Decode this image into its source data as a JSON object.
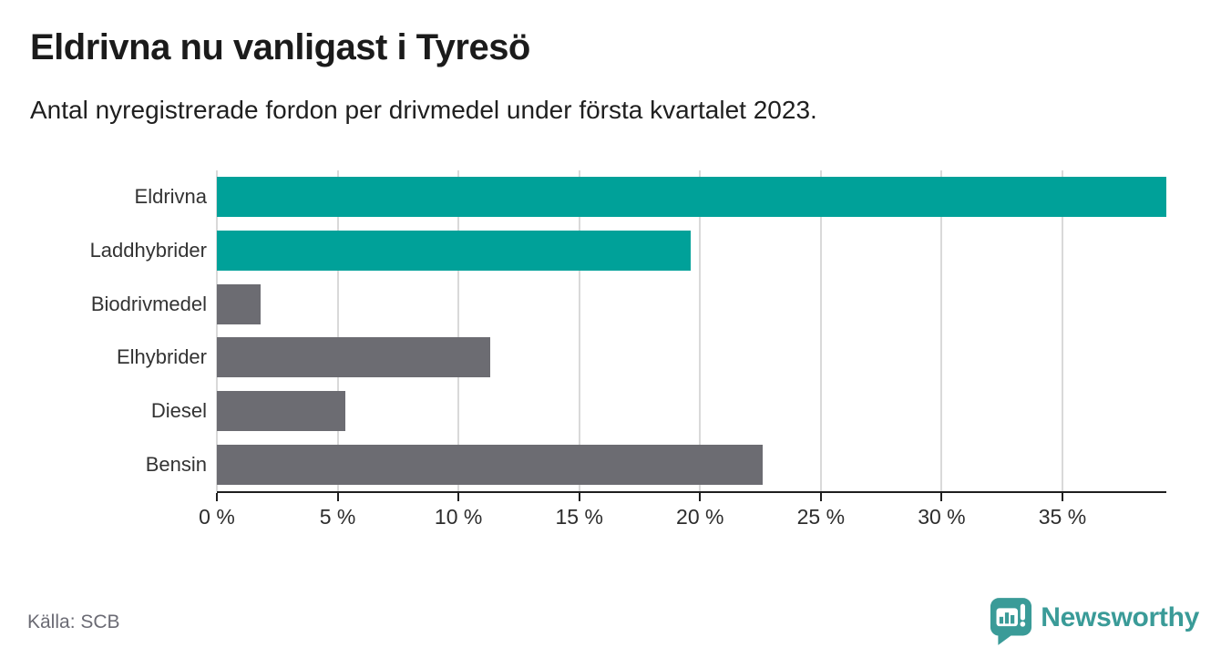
{
  "title": "Eldrivna nu vanligast i Tyresö",
  "subtitle": "Antal nyregistrerade fordon per drivmedel under första kvartalet 2023.",
  "source": "Källa: SCB",
  "logo": {
    "text": "Newsworthy"
  },
  "colors": {
    "highlight": "#00a199",
    "neutral": "#6c6c72",
    "gridline": "#d9d9d9",
    "axis": "#1f1f1f",
    "logo_teal": "#3a9b98"
  },
  "chart_data": {
    "type": "bar",
    "orientation": "horizontal",
    "title": "Eldrivna nu vanligast i Tyresö",
    "subtitle": "Antal nyregistrerade fordon per drivmedel under första kvartalet 2023.",
    "categories": [
      "Eldrivna",
      "Laddhybrider",
      "Biodrivmedel",
      "Elhybrider",
      "Diesel",
      "Bensin"
    ],
    "values": [
      39.3,
      19.6,
      1.8,
      11.3,
      5.3,
      22.6
    ],
    "unit": "%",
    "bar_colors": [
      "#00a199",
      "#00a199",
      "#6c6c72",
      "#6c6c72",
      "#6c6c72",
      "#6c6c72"
    ],
    "xlabel": "",
    "ylabel": "",
    "xlim": [
      0,
      39.3
    ],
    "ticks": [
      0,
      5,
      10,
      15,
      20,
      25,
      30,
      35
    ],
    "tick_labels": [
      "0 %",
      "5 %",
      "10 %",
      "15 %",
      "20 %",
      "25 %",
      "30 %",
      "35 %"
    ],
    "grid": true,
    "legend": false
  }
}
